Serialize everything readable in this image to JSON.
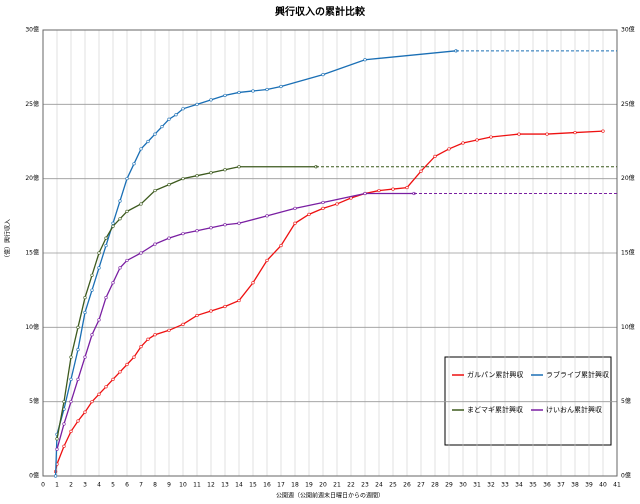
{
  "chart_data": {
    "type": "line",
    "title": "興行収入の累計比較",
    "x_label": "公開週（公開前週末日曜日からの週間）",
    "y_label": "（億）興行収入",
    "xlim": [
      0,
      41
    ],
    "xticks": [
      0,
      1,
      2,
      3,
      4,
      5,
      6,
      7,
      8,
      9,
      10,
      11,
      12,
      13,
      14,
      15,
      16,
      17,
      18,
      19,
      20,
      21,
      22,
      23,
      24,
      25,
      26,
      27,
      28,
      29,
      30,
      31,
      32,
      33,
      34,
      35,
      36,
      37,
      38,
      39,
      40,
      41
    ],
    "ylim": [
      0,
      30
    ],
    "yticks": [
      {
        "value": 0,
        "label": "0億"
      },
      {
        "value": 5,
        "label": "5億"
      },
      {
        "value": 10,
        "label": "10億"
      },
      {
        "value": 15,
        "label": "15億"
      },
      {
        "value": 20,
        "label": "20億"
      },
      {
        "value": 25,
        "label": "25億"
      },
      {
        "value": 30,
        "label": "30億"
      }
    ],
    "grid": true,
    "series": [
      {
        "name": "ガルパン累計興収",
        "color": "#ee1111",
        "extend": false,
        "x": [
          0.9,
          1,
          1.5,
          2,
          2.5,
          3,
          3.5,
          4,
          4.5,
          5,
          5.5,
          6,
          6.5,
          7,
          7.5,
          8,
          9,
          10,
          11,
          12,
          13,
          14,
          15,
          16,
          17,
          18,
          19,
          20,
          21,
          22,
          23,
          24,
          25,
          26,
          27,
          28,
          29,
          30,
          31,
          32,
          34,
          36,
          38,
          40
        ],
        "values": [
          0.3,
          0.8,
          2,
          3,
          3.7,
          4.3,
          5,
          5.5,
          6,
          6.5,
          7,
          7.5,
          8,
          8.7,
          9.2,
          9.5,
          9.8,
          10.2,
          10.8,
          11.1,
          11.4,
          11.8,
          13,
          14.5,
          15.5,
          17,
          17.6,
          18,
          18.3,
          18.7,
          19,
          19.2,
          19.3,
          19.4,
          20.5,
          21.5,
          22,
          22.4,
          22.6,
          22.8,
          23,
          23,
          23.1,
          23.2
        ]
      },
      {
        "name": "ラブライブ累計興収",
        "color": "#1a6fb5",
        "extend": true,
        "x": [
          0.9,
          1,
          1.5,
          2,
          2.5,
          3,
          3.5,
          4,
          4.5,
          5,
          5.5,
          6,
          6.5,
          7,
          7.5,
          8,
          8.5,
          9,
          9.5,
          10,
          11,
          12,
          13,
          14,
          15,
          16,
          17,
          20,
          23,
          29.5
        ],
        "values": [
          0,
          2.8,
          4.5,
          6.5,
          8.5,
          11,
          12.5,
          14,
          15.5,
          17,
          18.5,
          20,
          21,
          22,
          22.5,
          23,
          23.5,
          24,
          24.3,
          24.7,
          25,
          25.3,
          25.6,
          25.8,
          25.9,
          26,
          26.2,
          27,
          28,
          28.6
        ]
      },
      {
        "name": "まどマギ累計興収",
        "color": "#3d5a1e",
        "extend": true,
        "x": [
          1,
          1.5,
          2,
          2.5,
          3,
          3.5,
          4,
          4.5,
          5,
          5.5,
          6,
          7,
          8,
          9,
          10,
          11,
          12,
          13,
          14,
          19.5
        ],
        "values": [
          2.5,
          5,
          8,
          10,
          12,
          13.5,
          15,
          16,
          16.8,
          17.3,
          17.8,
          18.3,
          19.2,
          19.6,
          20,
          20.2,
          20.4,
          20.6,
          20.8,
          20.8
        ]
      },
      {
        "name": "けいおん累計興収",
        "color": "#7a1fa2",
        "extend": true,
        "x": [
          1,
          1.5,
          2,
          2.5,
          3,
          3.5,
          4,
          4.5,
          5,
          5.5,
          6,
          7,
          8,
          9,
          10,
          11,
          12,
          13,
          14,
          16,
          18,
          20,
          23,
          26.5
        ],
        "values": [
          1.8,
          3.5,
          5,
          6.5,
          8,
          9.5,
          10.5,
          12,
          13,
          14,
          14.5,
          15,
          15.6,
          16,
          16.3,
          16.5,
          16.7,
          16.9,
          17,
          17.5,
          18,
          18.4,
          19,
          19
        ]
      }
    ]
  }
}
